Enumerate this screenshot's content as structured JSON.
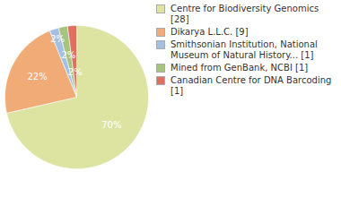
{
  "chart_data": {
    "type": "pie",
    "categories": [
      "Centre for Biodiversity Genomics [28]",
      "Dikarya L.L.C. [9]",
      "Smithsonian Institution, National Museum of Natural History... [1]",
      "Mined from GenBank, NCBI [1]",
      "Canadian Centre for DNA Barcoding [1]"
    ],
    "values": [
      70,
      22,
      2,
      2,
      2
    ],
    "value_labels": [
      "70%",
      "22%",
      "2%",
      "2%",
      "2%"
    ],
    "colors": [
      "#dde3a1",
      "#f0ab76",
      "#a3c0e2",
      "#a6c47e",
      "#df6f5e"
    ],
    "data_labels": true,
    "legend": "right"
  }
}
